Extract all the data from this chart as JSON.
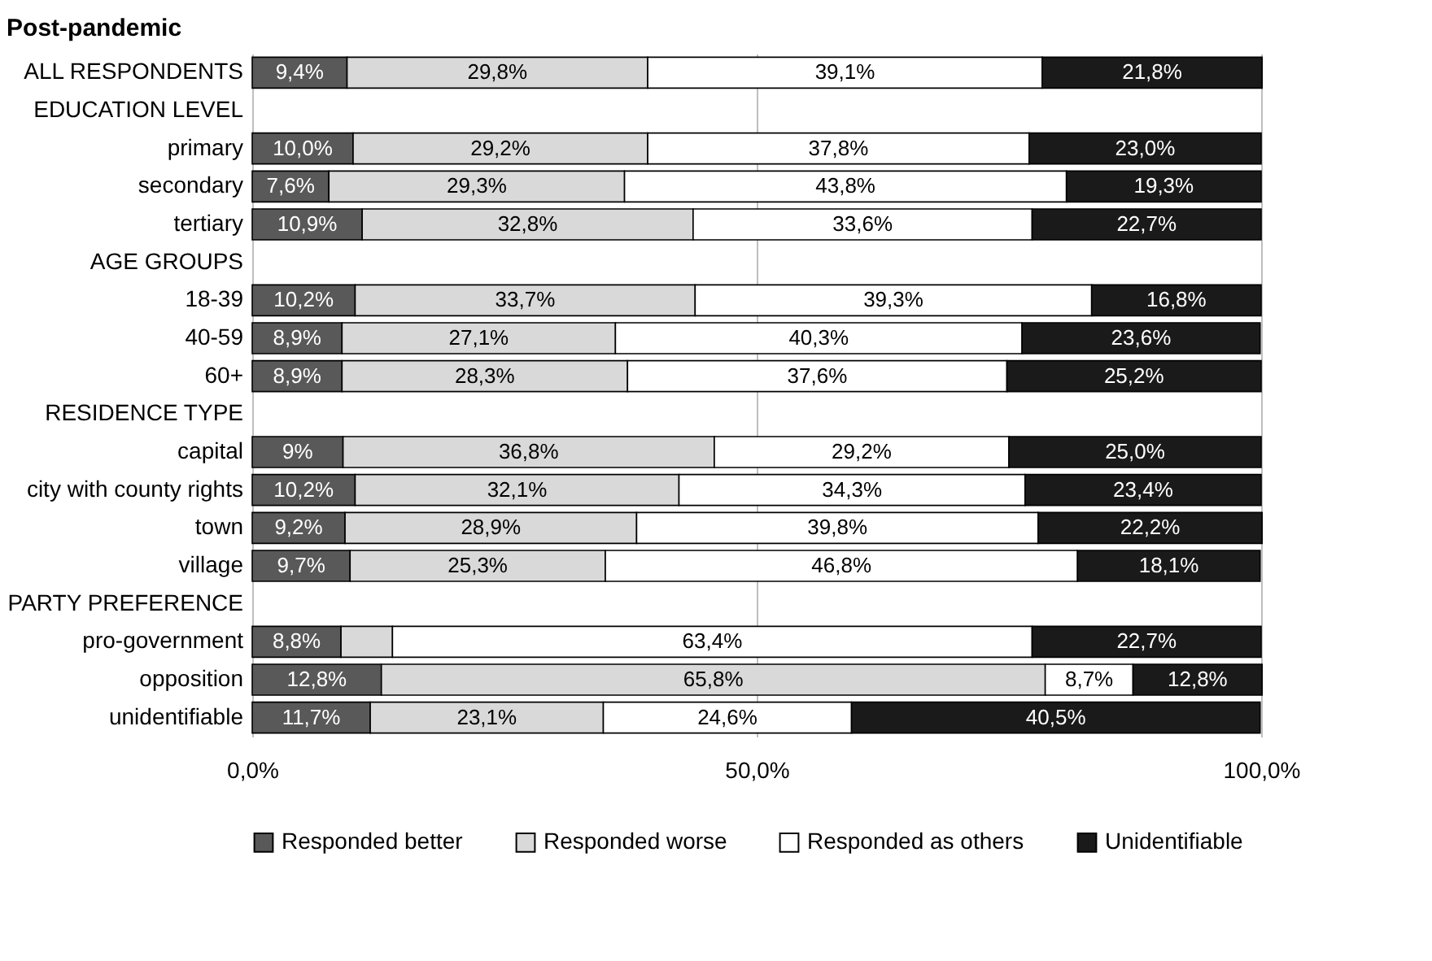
{
  "chart_data": {
    "type": "bar",
    "orientation": "horizontal",
    "stacked": true,
    "title": "Post-pandemic",
    "categories": [
      "ALL RESPONDENTS",
      "EDUCATION LEVEL",
      "primary",
      "secondary",
      "tertiary",
      "AGE GROUPS",
      "18-39",
      "40-59",
      "60+",
      "RESIDENCE TYPE",
      "capital",
      "city with county rights",
      "town",
      "village",
      "PARTY PREFERENCE",
      "pro-government",
      "opposition",
      "unidentifiable"
    ],
    "series": [
      {
        "name": "Responded better",
        "color": "#595959",
        "values": [
          9.4,
          null,
          10.0,
          7.6,
          10.9,
          null,
          10.2,
          8.9,
          8.9,
          null,
          9,
          10.2,
          9.2,
          9.7,
          null,
          8.8,
          12.8,
          11.7
        ],
        "value_labels": [
          "9,4%",
          null,
          "10,0%",
          "7,6%",
          "10,9%",
          null,
          "10,2%",
          "8,9%",
          "8,9%",
          null,
          "9%",
          "10,2%",
          "9,2%",
          "9,7%",
          null,
          "8,8%",
          "12,8%",
          "11,7%"
        ]
      },
      {
        "name": "Responded worse",
        "color": "#d9d9d9",
        "values": [
          29.8,
          null,
          29.2,
          29.3,
          32.8,
          null,
          33.7,
          27.1,
          28.3,
          null,
          36.8,
          32.1,
          28.9,
          25.3,
          null,
          5.1,
          65.8,
          23.1
        ],
        "value_labels": [
          "29,8%",
          null,
          "29,2%",
          "29,3%",
          "32,8%",
          null,
          "33,7%",
          "27,1%",
          "28,3%",
          null,
          "36,8%",
          "32,1%",
          "28,9%",
          "25,3%",
          null,
          null,
          "65,8%",
          "23,1%"
        ]
      },
      {
        "name": "Responded as others",
        "color": "#ffffff",
        "values": [
          39.1,
          null,
          37.8,
          43.8,
          33.6,
          null,
          39.3,
          40.3,
          37.6,
          null,
          29.2,
          34.3,
          39.8,
          46.8,
          null,
          63.4,
          8.7,
          24.6
        ],
        "value_labels": [
          "39,1%",
          null,
          "37,8%",
          "43,8%",
          "33,6%",
          null,
          "39,3%",
          "40,3%",
          "37,6%",
          null,
          "29,2%",
          "34,3%",
          "39,8%",
          "46,8%",
          null,
          "63,4%",
          "8,7%",
          "24,6%"
        ]
      },
      {
        "name": "Unidentifiable",
        "color": "#1a1a1a",
        "values": [
          21.8,
          null,
          23.0,
          19.3,
          22.7,
          null,
          16.8,
          23.6,
          25.2,
          null,
          25.0,
          23.4,
          22.2,
          18.1,
          null,
          22.7,
          12.8,
          40.5
        ],
        "value_labels": [
          "21,8%",
          null,
          "23,0%",
          "19,3%",
          "22,7%",
          null,
          "16,8%",
          "23,6%",
          "25,2%",
          null,
          "25,0%",
          "23,4%",
          "22,2%",
          "18,1%",
          null,
          "22,7%",
          "12,8%",
          "40,5%"
        ]
      }
    ],
    "xlim": [
      0,
      100
    ],
    "xticks": [
      {
        "value": 0,
        "label": "0,0%"
      },
      {
        "value": 50,
        "label": "50,0%"
      },
      {
        "value": 100,
        "label": "100,0%"
      }
    ],
    "grid": "x",
    "legend": "bottom"
  }
}
